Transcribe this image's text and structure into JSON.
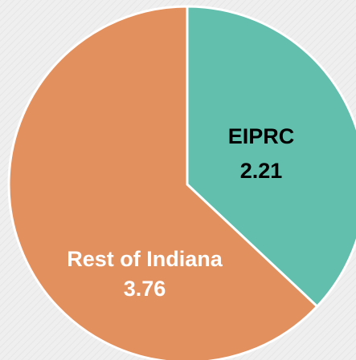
{
  "chart_data": {
    "type": "pie",
    "categories": [
      "EIPRC",
      "Rest of Indiana"
    ],
    "values": [
      2.21,
      3.76
    ],
    "colors": [
      "#62bfad",
      "#e3905f"
    ],
    "label_colors": [
      "#000000",
      "#ffffff"
    ]
  }
}
